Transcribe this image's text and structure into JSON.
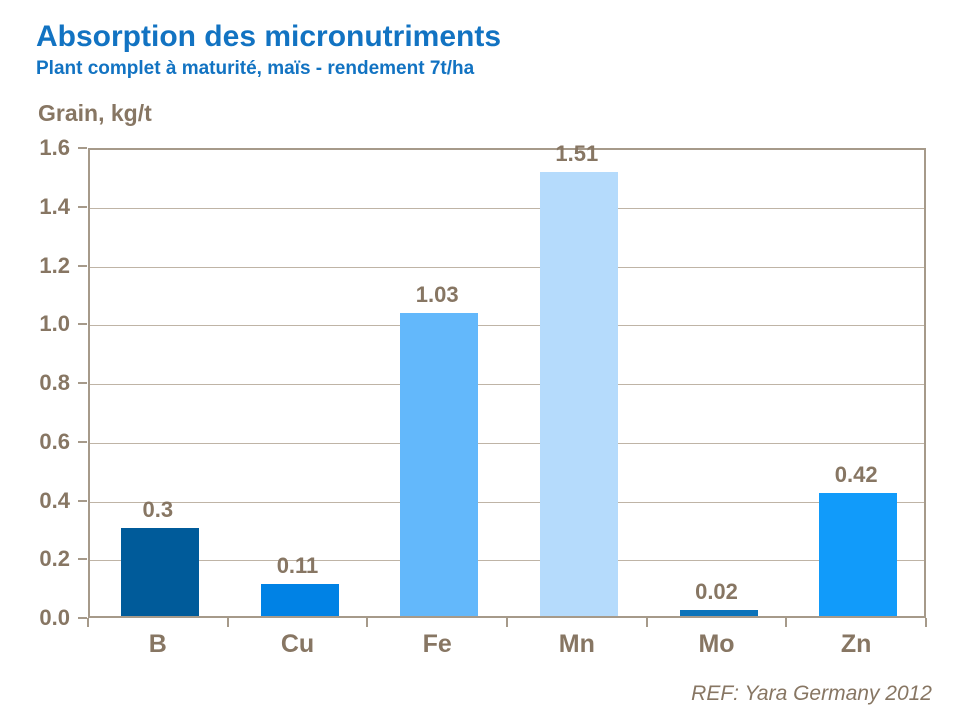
{
  "page": {
    "title": "Absorption des micronutriments",
    "subtitle": "Plant complet à maturité, maïs - rendement 7t/ha",
    "axis_title": "Grain, kg/t",
    "footer": "REF: Yara Germany 2012"
  },
  "colors": {
    "title_blue": "#1273C2",
    "text_brown": "#877663",
    "axis_line": "#A69A8A",
    "gridline": "#BFB4A6",
    "bar_colors": [
      "#005B9A",
      "#0082E5",
      "#63B8FB",
      "#B5DBFC",
      "#0C73BA",
      "#119BFA"
    ]
  },
  "chart_data": {
    "type": "bar",
    "title": "Absorption des micronutriments",
    "subtitle": "Plant complet à maturité, maïs - rendement 7t/ha",
    "ylabel": "Grain, kg/t",
    "xlabel": "",
    "categories": [
      "B",
      "Cu",
      "Fe",
      "Mn",
      "Mo",
      "Zn"
    ],
    "values": [
      0.3,
      0.11,
      1.03,
      1.51,
      0.02,
      0.42
    ],
    "value_labels": [
      "0.3",
      "0.11",
      "1.03",
      "1.51",
      "0.02",
      "0.42"
    ],
    "ylim": [
      0,
      1.6
    ],
    "ytick_step": 0.2,
    "ytick_labels": [
      "0.0",
      "0.2",
      "0.4",
      "0.6",
      "0.8",
      "1.0",
      "1.2",
      "1.4",
      "1.6"
    ],
    "grid": true,
    "legend_position": "none",
    "annotation": "REF: Yara Germany 2012"
  }
}
